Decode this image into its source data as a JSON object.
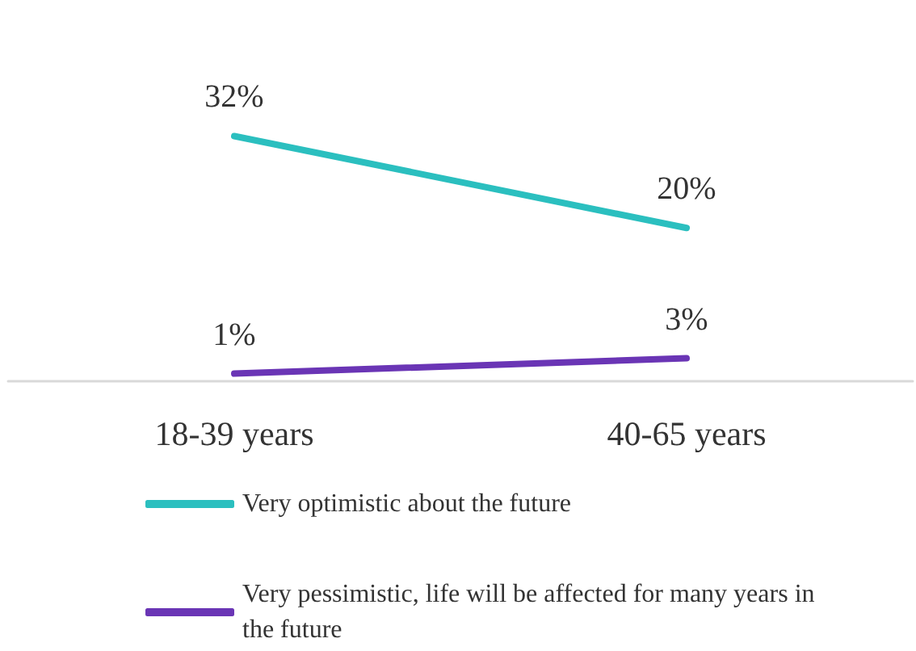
{
  "chart_data": {
    "type": "line",
    "categories": [
      "18-39 years",
      "40-65 years"
    ],
    "series": [
      {
        "name": "Very optimistic about the future",
        "color": "#2bbfbf",
        "values": [
          32,
          20
        ],
        "value_labels": [
          "32%",
          "20%"
        ]
      },
      {
        "name": "Very pessimistic, life will be affected for many years in the future",
        "color": "#6a35b5",
        "values": [
          1,
          3
        ],
        "value_labels": [
          "1%",
          "3%"
        ]
      }
    ],
    "marker": "none",
    "line_style": "solid",
    "grid": false,
    "legend": "bottom left",
    "tick_labels": "x"
  }
}
